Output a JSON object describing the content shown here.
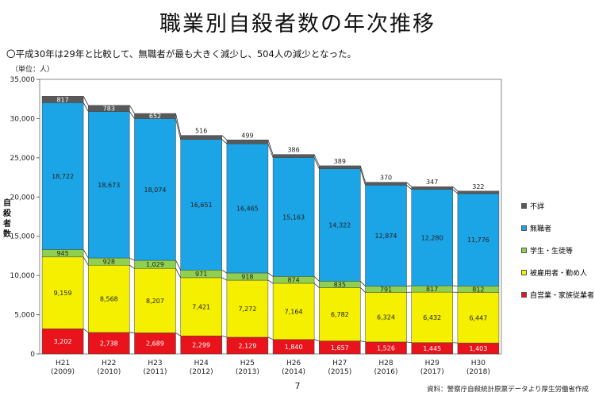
{
  "title": "職業別自殺者数の年次推移",
  "subtitle": "〇平成30年は29年と比較して、無職者が最も大きく減少し、504人の減少となった。",
  "unit": "（単位：人）",
  "page_number": "7",
  "source": "資料：警察庁自殺統計原票データより厚生労働省作成",
  "colors": {
    "self_employed": "#e8131b",
    "employed": "#f5f000",
    "student": "#8fd14f",
    "unemployed": "#1ba4e6",
    "unknown": "#595959"
  },
  "legend": {
    "unknown": "不詳",
    "unemployed": "無職者",
    "student": "学生・生徒等",
    "employed": "被雇用者・勤め人",
    "self_employed": "自営業・家族従業者"
  },
  "chart_data": {
    "type": "bar",
    "stacked": true,
    "categories": [
      "H21",
      "H22",
      "H23",
      "H24",
      "H25",
      "H26",
      "H27",
      "H28",
      "H29",
      "H30"
    ],
    "category_sublabels": [
      "(2009)",
      "(2010)",
      "(2011)",
      "(2012)",
      "(2013)",
      "(2014)",
      "(2015)",
      "(2016)",
      "(2017)",
      "(2018)"
    ],
    "ylabel": "自殺者数",
    "ylim": [
      0,
      35000
    ],
    "yticks": [
      0,
      5000,
      10000,
      15000,
      20000,
      25000,
      30000,
      35000
    ],
    "ytick_labels": [
      "0",
      "5,000",
      "10,000",
      "15,000",
      "20,000",
      "25,000",
      "30,000",
      "35,000"
    ],
    "series": [
      {
        "key": "self_employed",
        "name": "自営業・家族従業者",
        "values": [
          3202,
          2738,
          2689,
          2299,
          2129,
          1840,
          1657,
          1526,
          1445,
          1403
        ],
        "labels": [
          "3,202",
          "2,738",
          "2,689",
          "2,299",
          "2,129",
          "1,840",
          "1,657",
          "1,526",
          "1,445",
          "1,403"
        ]
      },
      {
        "key": "employed",
        "name": "被雇用者・勤め人",
        "values": [
          9159,
          8568,
          8207,
          7421,
          7272,
          7164,
          6782,
          6324,
          6432,
          6447
        ],
        "labels": [
          "9,159",
          "8,568",
          "8,207",
          "7,421",
          "7,272",
          "7,164",
          "6,782",
          "6,324",
          "6,432",
          "6,447"
        ]
      },
      {
        "key": "student",
        "name": "学生・生徒等",
        "values": [
          945,
          928,
          1029,
          971,
          918,
          874,
          835,
          791,
          817,
          812
        ],
        "labels": [
          "945",
          "928",
          "1,029",
          "971",
          "918",
          "874",
          "835",
          "791",
          "817",
          "812"
        ]
      },
      {
        "key": "unemployed",
        "name": "無職者",
        "values": [
          18722,
          18673,
          18074,
          16651,
          16465,
          15163,
          14322,
          12874,
          12280,
          11776
        ],
        "labels": [
          "18,722",
          "18,673",
          "18,074",
          "16,651",
          "16,465",
          "15,163",
          "14,322",
          "12,874",
          "12,280",
          "11,776"
        ]
      },
      {
        "key": "unknown",
        "name": "不詳",
        "values": [
          817,
          783,
          652,
          516,
          499,
          386,
          389,
          370,
          347,
          322
        ],
        "labels": [
          "817",
          "783",
          "652",
          "516",
          "499",
          "386",
          "389",
          "370",
          "347",
          "322"
        ]
      }
    ]
  }
}
